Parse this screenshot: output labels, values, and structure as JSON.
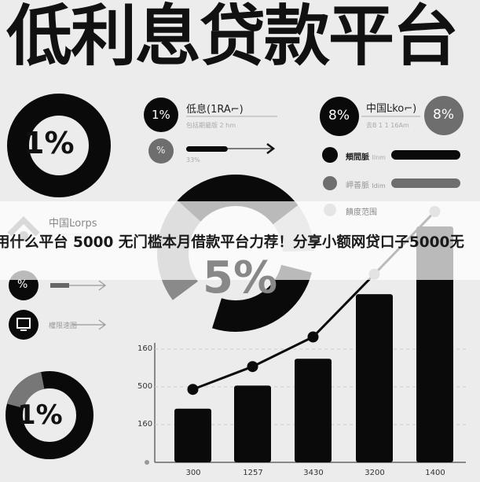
{
  "title": "低利息贷款平台",
  "left_donut_top": {
    "label": "1%"
  },
  "row1": {
    "badge": "1%",
    "heading": "低息(1RA⌐)",
    "sub": "包括期最版 2 hm"
  },
  "row2": {
    "badge": "%",
    "sub": "33%",
    "progress": 0.33
  },
  "right_block": {
    "badge_left": "8%",
    "heading": "中国Ŀko⌐)",
    "sub": "去B 1 1 16Am",
    "badge_right": "8%",
    "items": [
      {
        "label": "頬間脈",
        "suffix": "Ilnm"
      },
      {
        "label": "岬善脈",
        "suffix": "Idim"
      },
      {
        "label": "饋度范围"
      }
    ]
  },
  "center_donut": {
    "label": "5%"
  },
  "left_list": {
    "heading": "中国Ŀorps",
    "item2_badge": "%",
    "item3_label": "權限速图"
  },
  "left_donut_bottom": {
    "label": "1%"
  },
  "banner": "用什么平台 5000 无门槛本月借款平台力荐！分享小额网贷口子5000无",
  "chart": {
    "type": "bar",
    "y_ticks": [
      "160",
      "500",
      "160"
    ],
    "categories": [
      "300",
      "1257",
      "3430",
      "3200",
      "1400"
    ],
    "bar_heights_relative": [
      0.44,
      0.63,
      0.85,
      1.38,
      2.0
    ],
    "line_relative": [
      0.64,
      0.84,
      1.1,
      1.65,
      2.2
    ]
  },
  "colors": {
    "black": "#0a0a0a",
    "gray": "#6e6e6e",
    "light_gray": "#b5b5b5",
    "background": "#ececec"
  }
}
